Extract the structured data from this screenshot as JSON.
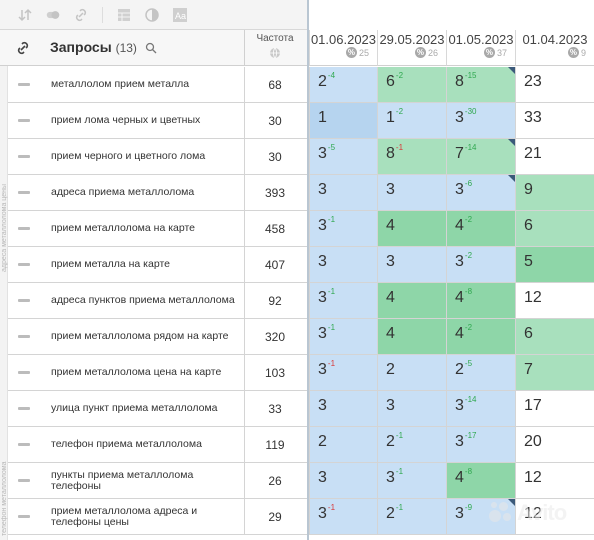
{
  "toolbar": {
    "icons": [
      "sort-icon",
      "toggle-icon",
      "link-icon",
      "table-icon",
      "contrast-icon",
      "text-icon"
    ]
  },
  "header": {
    "queries_title": "Запросы",
    "queries_count": "(13)",
    "frequency_label": "Частота"
  },
  "dates": [
    {
      "label": "01.06.2023",
      "pct": "25"
    },
    {
      "label": "29.05.2023",
      "pct": "26"
    },
    {
      "label": "01.05.2023",
      "pct": "37"
    },
    {
      "label": "01.04.2023",
      "pct": "9"
    }
  ],
  "side_labels": [
    "адреса металлолома цены",
    "телефон металлолома"
  ],
  "rows": [
    {
      "query": "металлолом прием металла",
      "freq": "68",
      "cells": [
        {
          "v": "2",
          "d": "-4",
          "dir": "up",
          "c": "c-blue"
        },
        {
          "v": "6",
          "d": "-2",
          "dir": "up",
          "c": "c-green"
        },
        {
          "v": "8",
          "d": "-15",
          "dir": "up",
          "c": "c-green",
          "corner": true
        },
        {
          "v": "23",
          "d": "",
          "dir": "",
          "c": "c-white"
        }
      ]
    },
    {
      "query": "прием лома черных и цветных",
      "freq": "30",
      "cells": [
        {
          "v": "1",
          "d": "",
          "dir": "",
          "c": "c-blue2"
        },
        {
          "v": "1",
          "d": "-2",
          "dir": "up",
          "c": "c-blue"
        },
        {
          "v": "3",
          "d": "-30",
          "dir": "up",
          "c": "c-blue"
        },
        {
          "v": "33",
          "d": "",
          "dir": "",
          "c": "c-white"
        }
      ]
    },
    {
      "query": "прием черного и цветного лома",
      "freq": "30",
      "cells": [
        {
          "v": "3",
          "d": "-5",
          "dir": "up",
          "c": "c-blue"
        },
        {
          "v": "8",
          "d": "-1",
          "dir": "down",
          "c": "c-green"
        },
        {
          "v": "7",
          "d": "-14",
          "dir": "up",
          "c": "c-green",
          "corner": true
        },
        {
          "v": "21",
          "d": "",
          "dir": "",
          "c": "c-white"
        }
      ]
    },
    {
      "query": "адреса приема металлолома",
      "freq": "393",
      "cells": [
        {
          "v": "3",
          "d": "",
          "dir": "",
          "c": "c-blue"
        },
        {
          "v": "3",
          "d": "",
          "dir": "",
          "c": "c-blue"
        },
        {
          "v": "3",
          "d": "-6",
          "dir": "up",
          "c": "c-blue",
          "corner": true
        },
        {
          "v": "9",
          "d": "",
          "dir": "",
          "c": "c-green"
        }
      ]
    },
    {
      "query": "прием металлолома на карте",
      "freq": "458",
      "cells": [
        {
          "v": "3",
          "d": "-1",
          "dir": "up",
          "c": "c-blue"
        },
        {
          "v": "4",
          "d": "",
          "dir": "",
          "c": "c-green2"
        },
        {
          "v": "4",
          "d": "-2",
          "dir": "up",
          "c": "c-green2"
        },
        {
          "v": "6",
          "d": "",
          "dir": "",
          "c": "c-green"
        }
      ]
    },
    {
      "query": "прием металла на карте",
      "freq": "407",
      "cells": [
        {
          "v": "3",
          "d": "",
          "dir": "",
          "c": "c-blue"
        },
        {
          "v": "3",
          "d": "",
          "dir": "",
          "c": "c-blue"
        },
        {
          "v": "3",
          "d": "-2",
          "dir": "up",
          "c": "c-blue"
        },
        {
          "v": "5",
          "d": "",
          "dir": "",
          "c": "c-green2"
        }
      ]
    },
    {
      "query": "адреса пунктов приема металлолома",
      "freq": "92",
      "cells": [
        {
          "v": "3",
          "d": "-1",
          "dir": "up",
          "c": "c-blue"
        },
        {
          "v": "4",
          "d": "",
          "dir": "",
          "c": "c-green2"
        },
        {
          "v": "4",
          "d": "-8",
          "dir": "up",
          "c": "c-green2"
        },
        {
          "v": "12",
          "d": "",
          "dir": "",
          "c": "c-white"
        }
      ]
    },
    {
      "query": "прием металлолома рядом на карте",
      "freq": "320",
      "cells": [
        {
          "v": "3",
          "d": "-1",
          "dir": "up",
          "c": "c-blue"
        },
        {
          "v": "4",
          "d": "",
          "dir": "",
          "c": "c-green2"
        },
        {
          "v": "4",
          "d": "-2",
          "dir": "up",
          "c": "c-green2"
        },
        {
          "v": "6",
          "d": "",
          "dir": "",
          "c": "c-green"
        }
      ]
    },
    {
      "query": "прием металлолома цена на карте",
      "freq": "103",
      "cells": [
        {
          "v": "3",
          "d": "-1",
          "dir": "down",
          "c": "c-blue"
        },
        {
          "v": "2",
          "d": "",
          "dir": "",
          "c": "c-blue"
        },
        {
          "v": "2",
          "d": "-5",
          "dir": "up",
          "c": "c-blue"
        },
        {
          "v": "7",
          "d": "",
          "dir": "",
          "c": "c-green"
        }
      ]
    },
    {
      "query": "улица пункт приема металлолома",
      "freq": "33",
      "cells": [
        {
          "v": "3",
          "d": "",
          "dir": "",
          "c": "c-blue"
        },
        {
          "v": "3",
          "d": "",
          "dir": "",
          "c": "c-blue"
        },
        {
          "v": "3",
          "d": "-14",
          "dir": "up",
          "c": "c-blue"
        },
        {
          "v": "17",
          "d": "",
          "dir": "",
          "c": "c-white"
        }
      ]
    },
    {
      "query": "телефон приема металлолома",
      "freq": "119",
      "cells": [
        {
          "v": "2",
          "d": "",
          "dir": "",
          "c": "c-blue"
        },
        {
          "v": "2",
          "d": "-1",
          "dir": "up",
          "c": "c-blue"
        },
        {
          "v": "3",
          "d": "-17",
          "dir": "up",
          "c": "c-blue"
        },
        {
          "v": "20",
          "d": "",
          "dir": "",
          "c": "c-white"
        }
      ]
    },
    {
      "query": "пункты приема металлолома телефоны",
      "freq": "26",
      "cells": [
        {
          "v": "3",
          "d": "",
          "dir": "",
          "c": "c-blue"
        },
        {
          "v": "3",
          "d": "-1",
          "dir": "up",
          "c": "c-blue"
        },
        {
          "v": "4",
          "d": "-8",
          "dir": "up",
          "c": "c-green2"
        },
        {
          "v": "12",
          "d": "",
          "dir": "",
          "c": "c-white"
        }
      ]
    },
    {
      "query": "прием металлолома адреса и телефоны цены",
      "freq": "29",
      "cells": [
        {
          "v": "3",
          "d": "-1",
          "dir": "down",
          "c": "c-blue"
        },
        {
          "v": "2",
          "d": "-1",
          "dir": "up",
          "c": "c-blue"
        },
        {
          "v": "3",
          "d": "-9",
          "dir": "up",
          "c": "c-blue",
          "corner": true
        },
        {
          "v": "12",
          "d": "",
          "dir": "",
          "c": "c-white"
        }
      ]
    }
  ],
  "watermark": {
    "text": "Avito"
  }
}
